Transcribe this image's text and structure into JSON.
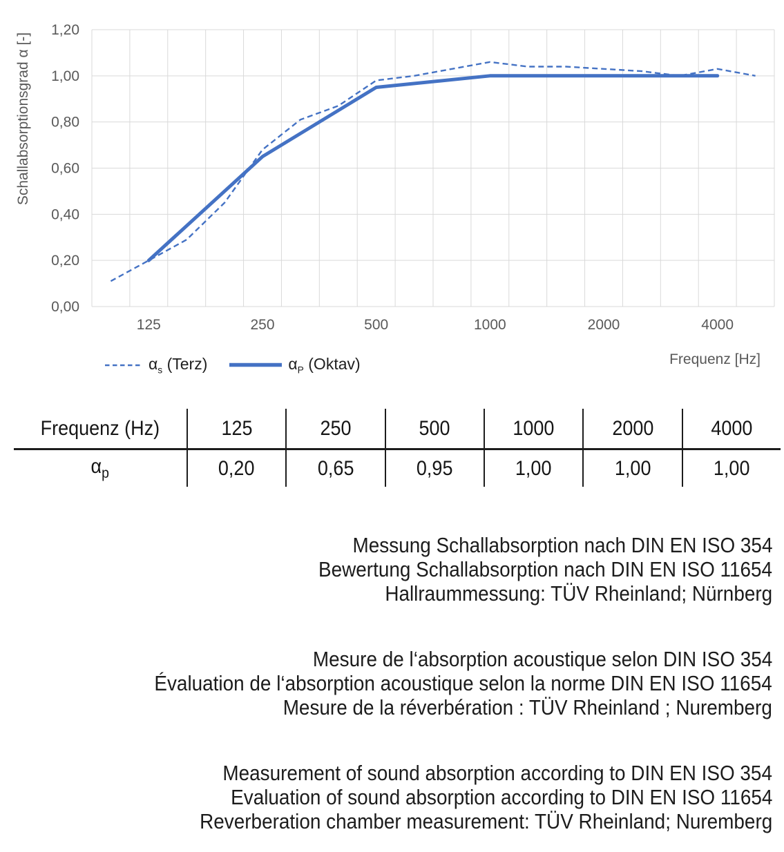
{
  "chart": {
    "y_axis_title": "Schallabsorptionsgrad α [-]",
    "x_axis_title": "Frequenz [Hz]",
    "legend": [
      {
        "alpha": "α",
        "sub": "s",
        "rest": " (Terz)",
        "style": "dashed"
      },
      {
        "alpha": "α",
        "sub": "P",
        "rest": " (Oktav)",
        "style": "solid"
      }
    ]
  },
  "chart_data": {
    "type": "line",
    "title": "",
    "xlabel": "Frequenz [Hz]",
    "ylabel": "Schallabsorptionsgrad α [-]",
    "categories": [
      100,
      125,
      160,
      200,
      250,
      315,
      400,
      500,
      630,
      800,
      1000,
      1250,
      1600,
      2000,
      2500,
      3150,
      4000,
      5000
    ],
    "series": [
      {
        "name": "αs (Terz)",
        "style": "dashed",
        "values": [
          0.11,
          0.2,
          0.29,
          0.45,
          0.68,
          0.81,
          0.87,
          0.98,
          1.0,
          1.03,
          1.06,
          1.04,
          1.04,
          1.03,
          1.02,
          1.0,
          1.03,
          1.0
        ]
      },
      {
        "name": "αP (Oktav)",
        "style": "solid",
        "x": [
          125,
          250,
          500,
          1000,
          2000,
          4000
        ],
        "values": [
          0.2,
          0.65,
          0.95,
          1.0,
          1.0,
          1.0
        ]
      }
    ],
    "ylim": [
      0,
      1.2
    ],
    "ytick_labels": [
      "0,00",
      "0,20",
      "0,40",
      "0,60",
      "0,80",
      "1,00",
      "1,20"
    ],
    "xtick_labels": [
      "125",
      "250",
      "500",
      "1000",
      "2000",
      "4000"
    ],
    "octave_indices": [
      1,
      4,
      7,
      10,
      13,
      16
    ],
    "grid": true,
    "legend_position": "bottom-left",
    "line_color": "#4472C4",
    "grid_color": "#D9D9D9",
    "tick_color": "#595959"
  },
  "table": {
    "header_label": "Frequenz (Hz)",
    "row_label_alpha": "α",
    "row_label_sub": "p",
    "frequencies": [
      "125",
      "250",
      "500",
      "1000",
      "2000",
      "4000"
    ],
    "values": [
      "0,20",
      "0,65",
      "0,95",
      "1,00",
      "1,00",
      "1,00"
    ]
  },
  "notes": {
    "de": [
      "Messung Schallabsorption nach DIN EN ISO 354",
      "Bewertung Schallabsorption nach DIN EN ISO 11654",
      "Hallraummessung: TÜV Rheinland; Nürnberg"
    ],
    "fr": [
      "Mesure de l‘absorption acoustique selon DIN ISO 354",
      "Évaluation de l‘absorption acoustique selon la norme DIN EN ISO 11654",
      "Mesure de la réverbération : TÜV Rheinland ; Nuremberg"
    ],
    "en": [
      "Measurement of sound absorption according to DIN EN ISO 354",
      "Evaluation of sound absorption according to DIN EN ISO 11654",
      "Reverberation chamber measurement: TÜV Rheinland; Nuremberg"
    ]
  }
}
